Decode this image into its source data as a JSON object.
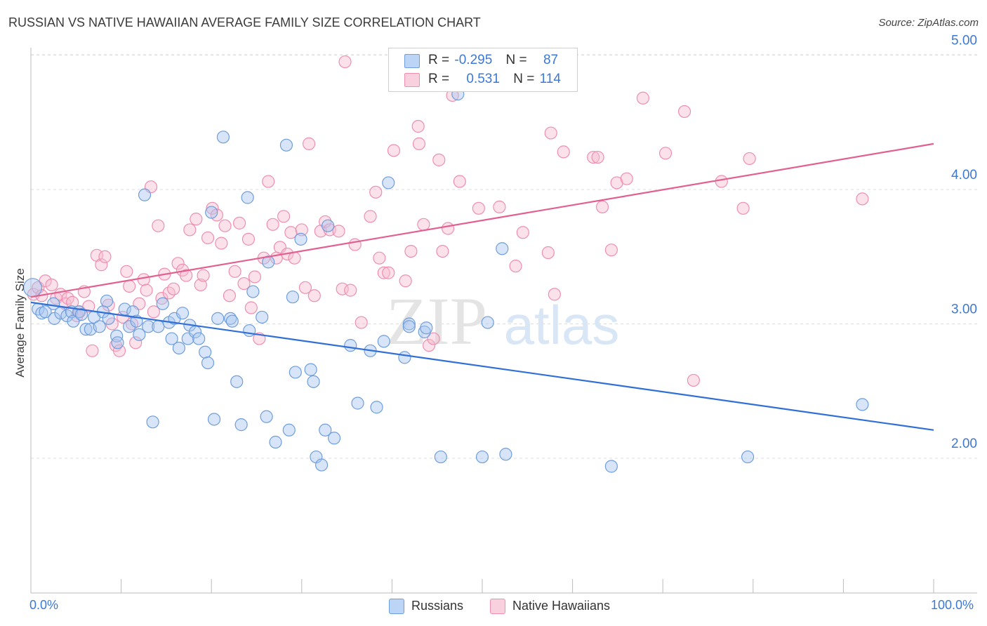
{
  "title": "RUSSIAN VS NATIVE HAWAIIAN AVERAGE FAMILY SIZE CORRELATION CHART",
  "source": "Source: ZipAtlas.com",
  "watermark": {
    "zip": "ZIP",
    "atlas": "atlas"
  },
  "legend_top": {
    "rows": [
      {
        "r_label": "R =",
        "r_value": "-0.295",
        "n_label": "N =",
        "n_value": "87"
      },
      {
        "r_label": "R =",
        "r_value": "0.531",
        "n_label": "N =",
        "n_value": "114"
      }
    ]
  },
  "legend_bottom": [
    "Russians",
    "Native Hawaiians"
  ],
  "colors": {
    "russians_fill": "#a9c6f0",
    "russians_stroke": "#6f9edc",
    "russians_line": "#2f6fd6",
    "hawaiians_fill": "#f6bdd0",
    "hawaiians_stroke": "#ee8fb0",
    "hawaiians_line": "#e2608f",
    "axis_value": "#3c78d8",
    "grid": "#dddddd"
  },
  "chart_data": {
    "type": "scatter",
    "title": "RUSSIAN VS NATIVE HAWAIIAN AVERAGE FAMILY SIZE CORRELATION CHART",
    "xlabel": "",
    "ylabel": "Average Family Size",
    "x_tick_labels": [
      "0.0%",
      "100.0%"
    ],
    "y_tick_labels": [
      "2.00",
      "3.00",
      "4.00",
      "5.00"
    ],
    "y_ticks": [
      2.0,
      3.0,
      4.0,
      5.0
    ],
    "xlim": [
      0,
      100
    ],
    "ylim": [
      1.0,
      5.1
    ],
    "grid": "horizontal dashed",
    "legend": "bottom-center",
    "series": [
      {
        "name": "Russians",
        "r": -0.295,
        "n": 87,
        "trend": {
          "x": [
            0,
            100
          ],
          "y": [
            3.16,
            2.21
          ]
        },
        "points": [
          [
            0.2,
            3.27
          ],
          [
            0.8,
            3.11
          ],
          [
            1.2,
            3.08
          ],
          [
            1.6,
            3.09
          ],
          [
            2.5,
            3.15
          ],
          [
            2.6,
            3.04
          ],
          [
            3.3,
            3.08
          ],
          [
            4.0,
            3.06
          ],
          [
            4.5,
            3.09
          ],
          [
            4.7,
            3.02
          ],
          [
            5.3,
            3.09
          ],
          [
            5.6,
            3.07
          ],
          [
            6.1,
            2.96
          ],
          [
            6.6,
            2.96
          ],
          [
            7.0,
            3.05
          ],
          [
            7.6,
            2.98
          ],
          [
            8.0,
            3.09
          ],
          [
            8.4,
            3.17
          ],
          [
            8.6,
            3.04
          ],
          [
            9.5,
            2.91
          ],
          [
            9.6,
            2.86
          ],
          [
            10.4,
            3.11
          ],
          [
            10.9,
            2.98
          ],
          [
            11.3,
            3.09
          ],
          [
            11.7,
            3.02
          ],
          [
            12.0,
            2.92
          ],
          [
            12.6,
            3.96
          ],
          [
            13.0,
            2.98
          ],
          [
            13.5,
            2.27
          ],
          [
            14.1,
            2.98
          ],
          [
            14.6,
            3.15
          ],
          [
            15.3,
            3.01
          ],
          [
            15.6,
            2.89
          ],
          [
            15.9,
            3.04
          ],
          [
            16.4,
            2.82
          ],
          [
            16.8,
            3.08
          ],
          [
            17.4,
            2.89
          ],
          [
            17.6,
            2.99
          ],
          [
            18.2,
            2.94
          ],
          [
            18.6,
            2.89
          ],
          [
            19.3,
            2.79
          ],
          [
            19.6,
            2.71
          ],
          [
            20.0,
            3.83
          ],
          [
            20.3,
            2.29
          ],
          [
            20.7,
            3.04
          ],
          [
            21.3,
            4.39
          ],
          [
            22.1,
            3.04
          ],
          [
            22.3,
            3.02
          ],
          [
            22.8,
            2.57
          ],
          [
            23.3,
            2.25
          ],
          [
            24.0,
            3.94
          ],
          [
            24.2,
            2.95
          ],
          [
            24.6,
            3.24
          ],
          [
            25.6,
            3.05
          ],
          [
            26.1,
            2.31
          ],
          [
            26.3,
            3.46
          ],
          [
            27.1,
            2.12
          ],
          [
            28.3,
            4.33
          ],
          [
            28.6,
            2.21
          ],
          [
            29.0,
            3.2
          ],
          [
            29.3,
            2.64
          ],
          [
            29.9,
            3.63
          ],
          [
            31.0,
            2.66
          ],
          [
            31.3,
            2.57
          ],
          [
            31.6,
            2.01
          ],
          [
            32.2,
            1.95
          ],
          [
            32.6,
            2.21
          ],
          [
            32.9,
            3.73
          ],
          [
            33.6,
            2.15
          ],
          [
            35.4,
            2.84
          ],
          [
            36.2,
            2.41
          ],
          [
            37.6,
            2.8
          ],
          [
            38.3,
            2.38
          ],
          [
            39.1,
            2.87
          ],
          [
            39.6,
            4.05
          ],
          [
            41.4,
            2.75
          ],
          [
            41.9,
            3.0
          ],
          [
            41.9,
            2.98
          ],
          [
            43.6,
            2.94
          ],
          [
            43.8,
            2.97
          ],
          [
            45.4,
            2.01
          ],
          [
            47.3,
            4.71
          ],
          [
            50.0,
            2.01
          ],
          [
            50.6,
            3.01
          ],
          [
            52.2,
            3.56
          ],
          [
            52.6,
            2.03
          ],
          [
            64.3,
            1.94
          ],
          [
            79.4,
            2.01
          ],
          [
            92.1,
            2.4
          ]
        ]
      },
      {
        "name": "Native Hawaiians",
        "r": 0.531,
        "n": 114,
        "trend": {
          "x": [
            0,
            100
          ],
          "y": [
            3.2,
            4.34
          ]
        },
        "points": [
          [
            0.3,
            3.22
          ],
          [
            0.8,
            3.27
          ],
          [
            1.2,
            3.21
          ],
          [
            1.6,
            3.32
          ],
          [
            2.3,
            3.29
          ],
          [
            2.8,
            3.19
          ],
          [
            3.3,
            3.22
          ],
          [
            3.8,
            3.15
          ],
          [
            4.1,
            3.19
          ],
          [
            4.6,
            3.16
          ],
          [
            5.1,
            3.06
          ],
          [
            5.4,
            3.09
          ],
          [
            5.9,
            3.24
          ],
          [
            6.4,
            3.13
          ],
          [
            6.8,
            2.8
          ],
          [
            7.3,
            3.51
          ],
          [
            7.8,
            3.44
          ],
          [
            8.2,
            3.5
          ],
          [
            8.6,
            3.14
          ],
          [
            9.0,
            3.0
          ],
          [
            9.4,
            2.84
          ],
          [
            9.8,
            2.8
          ],
          [
            10.2,
            3.05
          ],
          [
            10.6,
            3.39
          ],
          [
            10.9,
            3.28
          ],
          [
            11.2,
            3.0
          ],
          [
            11.6,
            2.86
          ],
          [
            12.0,
            3.15
          ],
          [
            12.5,
            3.33
          ],
          [
            12.8,
            3.25
          ],
          [
            13.3,
            4.02
          ],
          [
            13.6,
            3.09
          ],
          [
            14.1,
            3.73
          ],
          [
            14.5,
            3.19
          ],
          [
            14.8,
            3.37
          ],
          [
            15.3,
            3.23
          ],
          [
            15.8,
            3.26
          ],
          [
            16.3,
            3.45
          ],
          [
            16.8,
            3.4
          ],
          [
            17.2,
            3.36
          ],
          [
            17.6,
            3.7
          ],
          [
            18.3,
            3.78
          ],
          [
            18.8,
            3.29
          ],
          [
            19.1,
            3.36
          ],
          [
            19.6,
            3.64
          ],
          [
            20.1,
            3.86
          ],
          [
            20.6,
            3.81
          ],
          [
            21.1,
            3.6
          ],
          [
            21.5,
            3.73
          ],
          [
            22.0,
            3.21
          ],
          [
            22.6,
            3.39
          ],
          [
            23.1,
            3.75
          ],
          [
            23.6,
            3.3
          ],
          [
            24.1,
            3.63
          ],
          [
            24.4,
            3.12
          ],
          [
            24.8,
            3.35
          ],
          [
            25.3,
            2.89
          ],
          [
            25.8,
            3.49
          ],
          [
            26.3,
            4.06
          ],
          [
            26.8,
            3.74
          ],
          [
            27.2,
            3.49
          ],
          [
            27.6,
            3.57
          ],
          [
            28.0,
            3.8
          ],
          [
            28.4,
            3.52
          ],
          [
            28.8,
            3.68
          ],
          [
            29.2,
            3.49
          ],
          [
            30.0,
            3.7
          ],
          [
            30.4,
            3.27
          ],
          [
            30.8,
            4.34
          ],
          [
            31.4,
            3.21
          ],
          [
            32.1,
            3.69
          ],
          [
            32.6,
            3.76
          ],
          [
            33.1,
            3.7
          ],
          [
            34.1,
            3.69
          ],
          [
            34.5,
            3.26
          ],
          [
            35.4,
            3.25
          ],
          [
            35.9,
            3.59
          ],
          [
            36.6,
            3.01
          ],
          [
            37.6,
            3.8
          ],
          [
            38.2,
            3.98
          ],
          [
            38.6,
            3.49
          ],
          [
            39.1,
            3.38
          ],
          [
            39.6,
            3.38
          ],
          [
            40.2,
            4.29
          ],
          [
            41.5,
            3.32
          ],
          [
            42.1,
            3.54
          ],
          [
            42.9,
            4.47
          ],
          [
            43.0,
            4.34
          ],
          [
            43.5,
            3.74
          ],
          [
            44.1,
            2.84
          ],
          [
            44.6,
            2.89
          ],
          [
            45.2,
            4.22
          ],
          [
            45.6,
            3.54
          ],
          [
            46.2,
            3.71
          ],
          [
            46.7,
            4.7
          ],
          [
            47.5,
            4.06
          ],
          [
            49.6,
            3.86
          ],
          [
            51.9,
            3.87
          ],
          [
            53.7,
            3.43
          ],
          [
            54.5,
            3.68
          ],
          [
            57.3,
            3.53
          ],
          [
            57.6,
            4.42
          ],
          [
            58.0,
            3.22
          ],
          [
            59.0,
            4.28
          ],
          [
            62.3,
            4.24
          ],
          [
            62.8,
            4.24
          ],
          [
            63.3,
            3.87
          ],
          [
            64.3,
            3.55
          ],
          [
            64.9,
            4.05
          ],
          [
            66.0,
            4.08
          ],
          [
            67.8,
            4.68
          ],
          [
            70.3,
            4.27
          ],
          [
            72.4,
            4.58
          ],
          [
            73.4,
            2.58
          ],
          [
            76.5,
            4.06
          ],
          [
            78.9,
            3.86
          ],
          [
            79.6,
            4.23
          ],
          [
            92.1,
            3.93
          ],
          [
            34.8,
            4.95
          ]
        ]
      }
    ]
  }
}
